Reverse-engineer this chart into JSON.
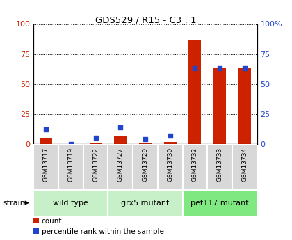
{
  "title": "GDS529 / R15 - C3 : 1",
  "samples": [
    "GSM13717",
    "GSM13719",
    "GSM13722",
    "GSM13727",
    "GSM13729",
    "GSM13730",
    "GSM13732",
    "GSM13733",
    "GSM13734"
  ],
  "count_values": [
    5,
    0,
    1,
    7,
    1,
    2,
    87,
    63,
    63
  ],
  "percentile_values": [
    12,
    0,
    5,
    14,
    4,
    7,
    63,
    63,
    63
  ],
  "groups": [
    {
      "label": "wild type",
      "start": 0,
      "end": 3,
      "color": "#c8f0c8"
    },
    {
      "label": "grx5 mutant",
      "start": 3,
      "end": 6,
      "color": "#c8f0c8"
    },
    {
      "label": "pet117 mutant",
      "start": 6,
      "end": 9,
      "color": "#80e880"
    }
  ],
  "ylim": [
    0,
    100
  ],
  "yticks": [
    0,
    25,
    50,
    75,
    100
  ],
  "count_color": "#cc2200",
  "percentile_color": "#2244cc",
  "bar_width": 0.5,
  "legend_count": "count",
  "legend_percentile": "percentile rank within the sample",
  "bg_color": "#d8d8d8",
  "plot_bg": "#ffffff"
}
